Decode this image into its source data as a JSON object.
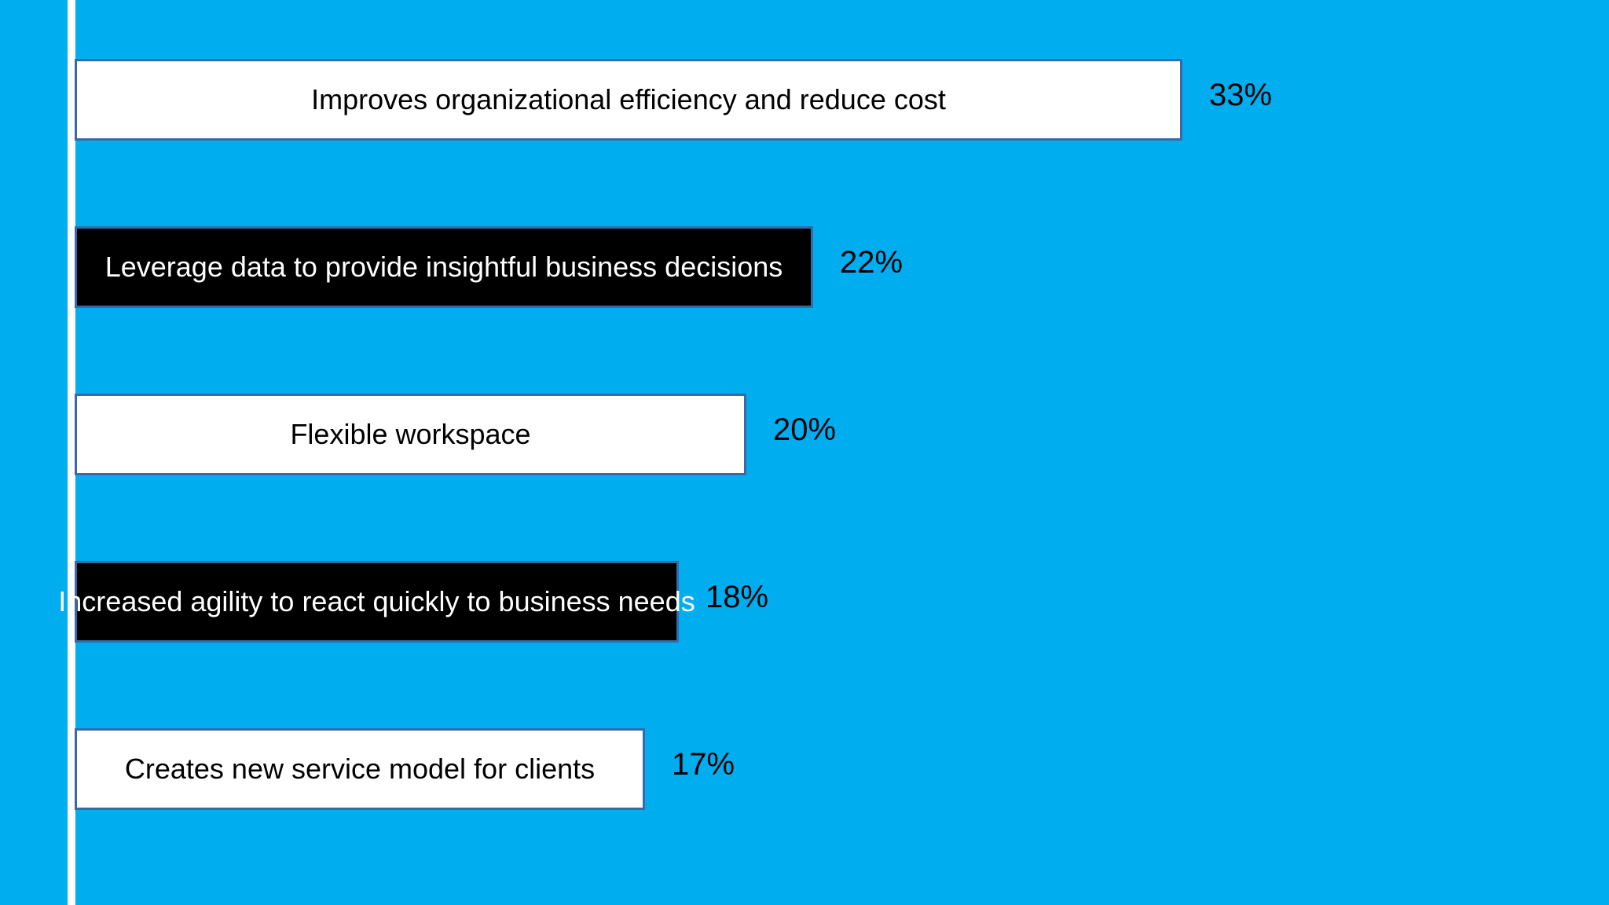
{
  "chart_data": {
    "type": "bar",
    "orientation": "horizontal",
    "categories": [
      "Improves organizational efficiency and reduce cost",
      "Leverage data to provide insightful business decisions",
      "Flexible workspace",
      "Increased agility to react quickly to business needs",
      "Creates new service model for clients"
    ],
    "values": [
      33,
      22,
      20,
      18,
      17
    ],
    "value_labels": [
      "33%",
      "22%",
      "20%",
      "18%",
      "17%"
    ],
    "bar_colors": [
      "#ffffff",
      "#000000",
      "#ffffff",
      "#000000",
      "#ffffff"
    ],
    "label_colors": [
      "#000000",
      "#ffffff",
      "#000000",
      "#ffffff",
      "#000000"
    ],
    "title": "",
    "xlabel": "",
    "ylabel": "",
    "xlim": [
      0,
      33
    ],
    "grid": false,
    "legend": "none"
  },
  "colors": {
    "background": "#00adef",
    "axis": "#ffffff",
    "bar_border": "#3a6aa6"
  }
}
